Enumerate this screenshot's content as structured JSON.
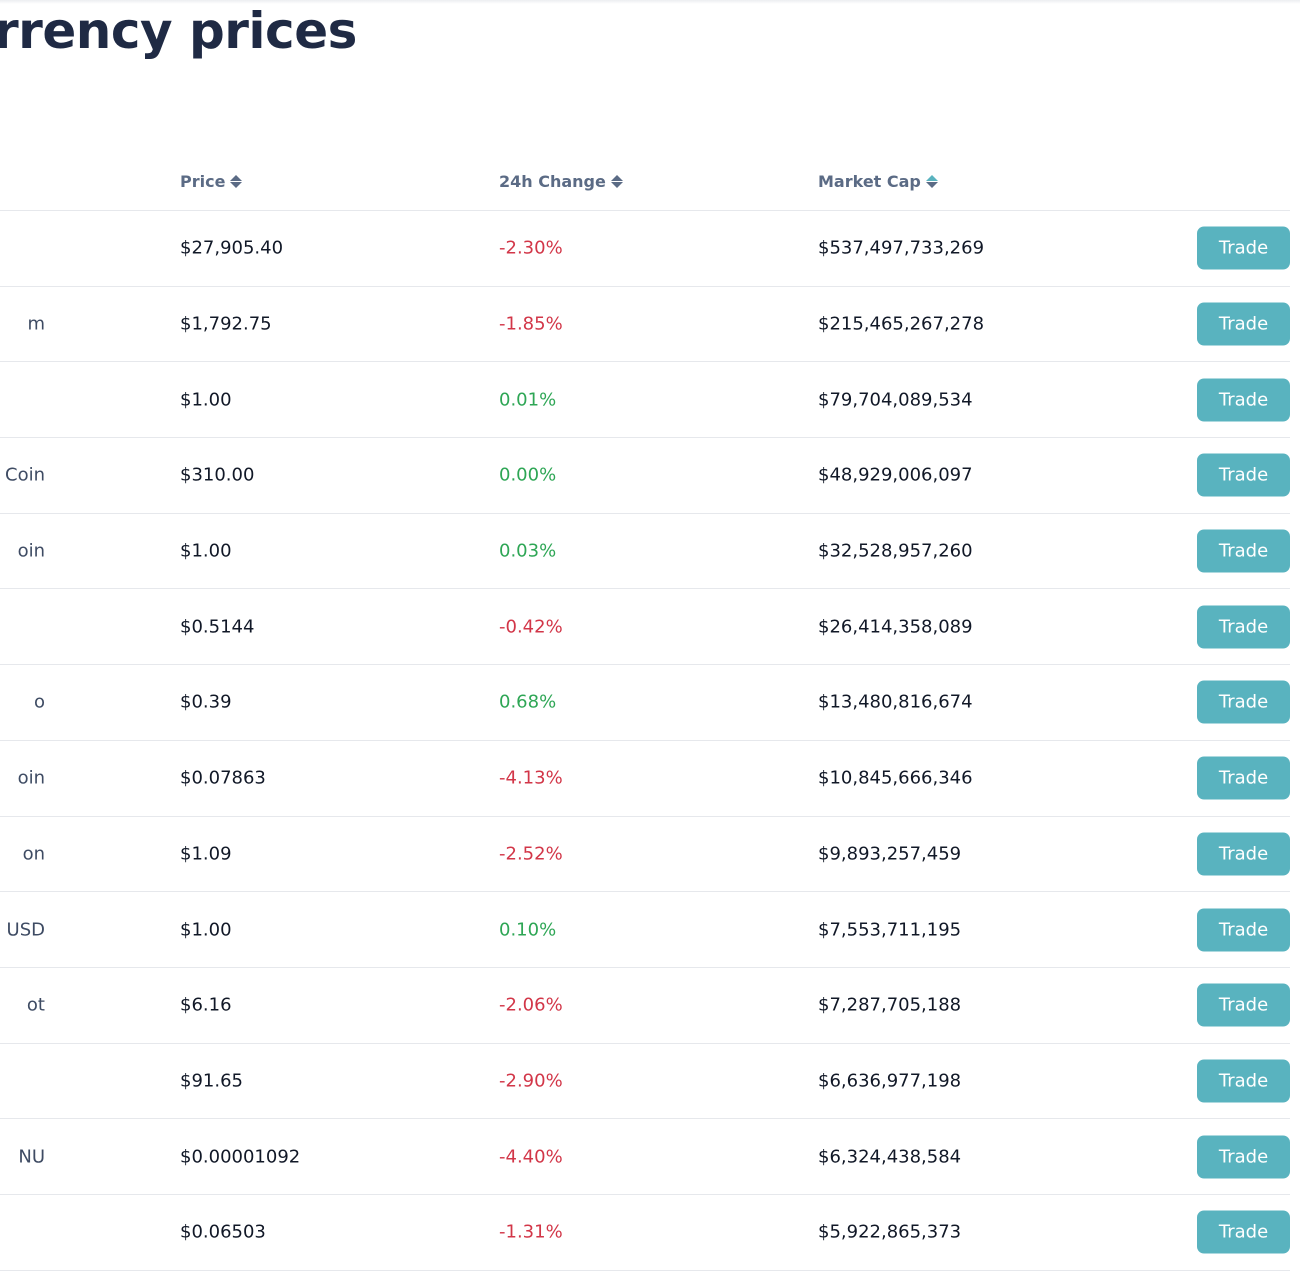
{
  "header": {
    "title": "rrency prices"
  },
  "table": {
    "columns": {
      "price": "Price",
      "change": "24h Change",
      "market_cap": "Market Cap"
    },
    "trade_label": "Trade",
    "rows": [
      {
        "name": "",
        "price": "$27,905.40",
        "change": "-2.30%",
        "direction": "neg",
        "market_cap": "$537,497,733,269"
      },
      {
        "name": "m",
        "price": "$1,792.75",
        "change": "-1.85%",
        "direction": "neg",
        "market_cap": "$215,465,267,278"
      },
      {
        "name": "",
        "price": "$1.00",
        "change": "0.01%",
        "direction": "pos",
        "market_cap": "$79,704,089,534"
      },
      {
        "name": "e Coin",
        "price": "$310.00",
        "change": "0.00%",
        "direction": "pos",
        "market_cap": "$48,929,006,097"
      },
      {
        "name": "oin",
        "price": "$1.00",
        "change": "0.03%",
        "direction": "pos",
        "market_cap": "$32,528,957,260"
      },
      {
        "name": "",
        "price": "$0.5144",
        "change": "-0.42%",
        "direction": "neg",
        "market_cap": "$26,414,358,089"
      },
      {
        "name": "o",
        "price": "$0.39",
        "change": "0.68%",
        "direction": "pos",
        "market_cap": "$13,480,816,674"
      },
      {
        "name": "oin",
        "price": "$0.07863",
        "change": "-4.13%",
        "direction": "neg",
        "market_cap": "$10,845,666,346"
      },
      {
        "name": "on",
        "price": "$1.09",
        "change": "-2.52%",
        "direction": "neg",
        "market_cap": "$9,893,257,459"
      },
      {
        "name": "ce USD",
        "price": "$1.00",
        "change": "0.10%",
        "direction": "pos",
        "market_cap": "$7,553,711,195"
      },
      {
        "name": "ot",
        "price": "$6.16",
        "change": "-2.06%",
        "direction": "neg",
        "market_cap": "$7,287,705,188"
      },
      {
        "name": "",
        "price": "$91.65",
        "change": "-2.90%",
        "direction": "neg",
        "market_cap": "$6,636,977,198"
      },
      {
        "name": "NU",
        "price": "$0.00001092",
        "change": "-4.40%",
        "direction": "neg",
        "market_cap": "$6,324,438,584"
      },
      {
        "name": "",
        "price": "$0.06503",
        "change": "-1.31%",
        "direction": "neg",
        "market_cap": "$5,922,865,373"
      }
    ]
  },
  "colors": {
    "accent": "#59b3bf",
    "negative": "#d23648",
    "positive": "#2ea655",
    "title": "#1f2a44",
    "header_text": "#5b6b85"
  },
  "icons": {
    "sort": "sort-icon"
  }
}
